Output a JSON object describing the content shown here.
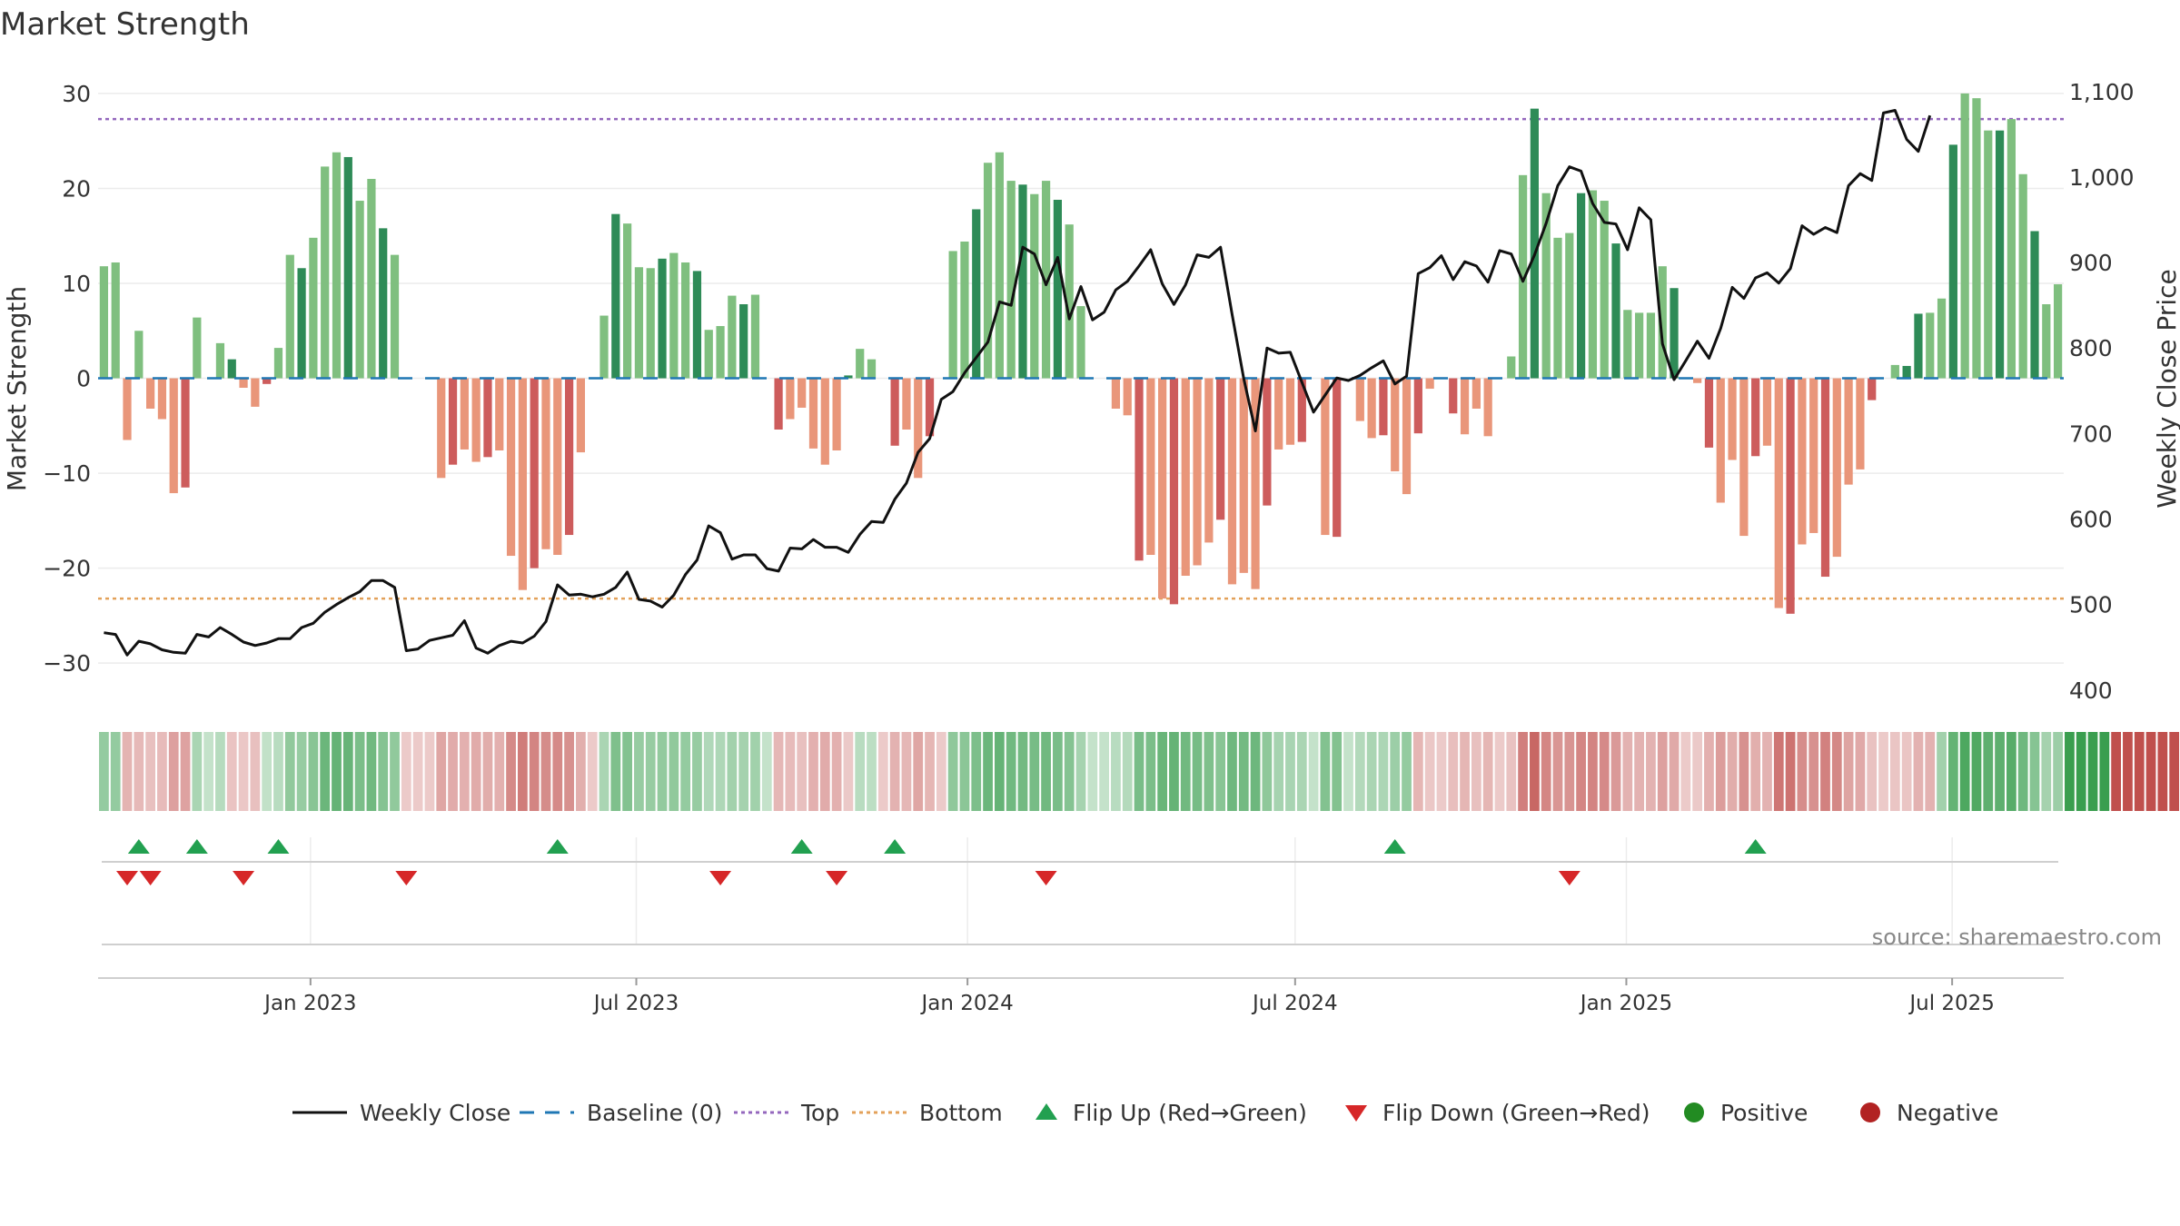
{
  "chart_data": {
    "type": "bar",
    "title": "Market Strength",
    "ylabel": "Market Strength",
    "y2label": "Weekly Close Price",
    "ylim": [
      -34,
      32
    ],
    "y2lim": [
      387,
      1120
    ],
    "yticks": [
      30,
      20,
      10,
      0,
      -10,
      -20,
      -30
    ],
    "ytick_labels": [
      "30",
      "20",
      "10",
      "0",
      "−10",
      "−20",
      "−30"
    ],
    "y2ticks": [
      1100,
      1000,
      900,
      800,
      700,
      600,
      500,
      400
    ],
    "y2tick_labels": [
      "1,100",
      "1,000",
      "900",
      "800",
      "700",
      "600",
      "500",
      "400"
    ],
    "x_start_date": "2022-09-05",
    "x_end_date": "2025-09-01",
    "xticks": [
      {
        "date": "2023-01-01",
        "label": "Jan 2023"
      },
      {
        "date": "2023-07-01",
        "label": "Jul 2023"
      },
      {
        "date": "2024-01-01",
        "label": "Jan 2024"
      },
      {
        "date": "2024-07-01",
        "label": "Jul 2024"
      },
      {
        "date": "2025-01-01",
        "label": "Jan 2025"
      },
      {
        "date": "2025-07-01",
        "label": "Jul 2025"
      }
    ],
    "top_level": 27.3,
    "bottom_level": -23.2,
    "baseline": 0,
    "strength": [
      11.8,
      12.2,
      -6.5,
      5.0,
      -3.2,
      -4.3,
      -12.1,
      -11.5,
      6.4,
      0,
      3.7,
      2.0,
      -1.0,
      -3.0,
      -0.6,
      3.2,
      13.0,
      11.6,
      14.8,
      22.3,
      23.8,
      23.3,
      18.7,
      21.0,
      15.8,
      13.0,
      0,
      0,
      0,
      -10.5,
      -9.1,
      -7.5,
      -8.8,
      -8.3,
      -7.6,
      -18.7,
      -22.3,
      -20.0,
      -18.0,
      -18.6,
      -16.5,
      -7.8,
      0,
      6.6,
      17.3,
      16.3,
      11.7,
      11.6,
      12.6,
      13.2,
      12.2,
      11.3,
      5.1,
      5.5,
      8.7,
      7.8,
      8.8,
      0,
      -5.4,
      -4.3,
      -3.1,
      -7.4,
      -9.1,
      -7.6,
      0.3,
      3.1,
      2.0,
      0,
      -7.1,
      -5.4,
      -10.5,
      -6.1,
      0,
      13.4,
      14.4,
      17.8,
      22.7,
      23.8,
      20.8,
      20.4,
      19.4,
      20.8,
      18.8,
      16.2,
      7.6,
      0,
      0,
      -3.2,
      -3.9,
      -19.2,
      -18.6,
      -23.2,
      -23.8,
      -20.8,
      -19.7,
      -17.3,
      -14.9,
      -21.7,
      -20.5,
      -22.2,
      -13.4,
      -7.5,
      -7.0,
      -6.7,
      0,
      -16.5,
      -16.7,
      0,
      -4.5,
      -6.3,
      -6.0,
      -9.8,
      -12.2,
      -5.8,
      -1.1,
      0,
      -3.7,
      -5.9,
      -3.2,
      -6.1,
      0,
      2.3,
      21.4,
      28.4,
      19.5,
      14.8,
      15.3,
      19.5,
      19.8,
      18.7,
      14.2,
      7.2,
      6.9,
      6.9,
      11.8,
      9.5,
      0,
      -0.5,
      -7.3,
      -13.1,
      -8.6,
      -16.6,
      -8.2,
      -7.1,
      -24.2,
      -24.8,
      -17.5,
      -16.3,
      -20.9,
      -18.8,
      -11.2,
      -9.6,
      -2.3,
      0,
      1.4,
      1.3,
      6.8,
      6.9,
      8.4,
      24.6,
      30.0,
      29.5,
      26.1,
      26.1,
      27.3,
      21.5,
      15.5,
      7.8,
      9.9
    ],
    "strength_tone": "LLLLLLLDLLLDLLDLLDLLLDLLDLLLLLDLLDLLLDLLDLLLDLLLDLLDLLLDLLDLLLLLDLLDDLLDLLLDLLLDLLDLLDLLLDLLDLLLDLLLDLLDLLDLLLDLLDLLDLLLDLLDLLLDLLDLLLLDLLDLLLDLLDLLDLLLDLLDDLLDLLLDLLD",
    "close": [
      467,
      465,
      441,
      457,
      454,
      447,
      444,
      443,
      465,
      462,
      473,
      465,
      456,
      452,
      455,
      460,
      460,
      473,
      478,
      491,
      500,
      508,
      515,
      528,
      528,
      520,
      446,
      448,
      458,
      461,
      464,
      481,
      449,
      443,
      452,
      457,
      455,
      463,
      480,
      523,
      511,
      512,
      509,
      512,
      520,
      538,
      506,
      504,
      497,
      511,
      535,
      552,
      592,
      584,
      553,
      558,
      558,
      542,
      539,
      566,
      565,
      576,
      567,
      567,
      561,
      582,
      597,
      596,
      623,
      642,
      678,
      694,
      740,
      749,
      771,
      789,
      807,
      854,
      850,
      918,
      910,
      874,
      906,
      834,
      872,
      833,
      842,
      868,
      878,
      896,
      915,
      875,
      851,
      874,
      909,
      906,
      918,
      839,
      764,
      703,
      800,
      794,
      795,
      760,
      725,
      745,
      765,
      762,
      768,
      777,
      785,
      758,
      767,
      887,
      894,
      908,
      880,
      901,
      896,
      877,
      914,
      910,
      878,
      909,
      946,
      990,
      1012,
      1007,
      969,
      947,
      945,
      915,
      964,
      950,
      805,
      763,
      785,
      808,
      788,
      823,
      871,
      858,
      882,
      888,
      876,
      893,
      943,
      933,
      941,
      935,
      990,
      1004,
      996,
      1075,
      1078,
      1044,
      1030,
      1072
    ],
    "regime_tone": "GGRRRRRRGGGRRRGGGGGGGGGGGGRRRRRRRRRRRRRRRRRGGGGGGGGGGGGGGGRRRRRRRGGRRRRRRGGGGGGGGGGGGGGGGGGGGGGGGGGGGGGGGGGGGGGGGRRRRRRRRRRRRRRRRRRRRRRRRRRRRRRRRRRRRRRRRRRRRRGGGGGGGGGGGGGGGRRRRRRRRRRRRRRRRRGGGGGGGGGGGGGGGGGG",
    "flip_up_weeks": [
      3,
      8,
      15,
      39,
      60,
      68,
      111,
      142
    ],
    "flip_down_weeks": [
      2,
      4,
      12,
      26,
      53,
      63,
      81,
      126
    ],
    "series": [
      {
        "name": "Weekly Close"
      },
      {
        "name": "Baseline (0)"
      },
      {
        "name": "Top"
      },
      {
        "name": "Bottom"
      },
      {
        "name": "Flip Up (Red→Green)"
      },
      {
        "name": "Flip Down (Green→Red)"
      },
      {
        "name": "Positive"
      },
      {
        "name": "Negative"
      }
    ],
    "legend_position": "bottom-center",
    "grid": true
  },
  "colors": {
    "positive_dark": "#2e8b57",
    "positive_light": "#7fbf7f",
    "negative_dark": "#cd5c5c",
    "negative_light": "#e9967a",
    "close_line": "#111111",
    "baseline": "#1f77b4",
    "top": "#9467bd",
    "bottom": "#e3a15a",
    "flip_up": "#22a050",
    "flip_down": "#d62728",
    "legend_positive": "#228b22",
    "legend_negative": "#b22222"
  },
  "source": "source: sharemaestro.com"
}
